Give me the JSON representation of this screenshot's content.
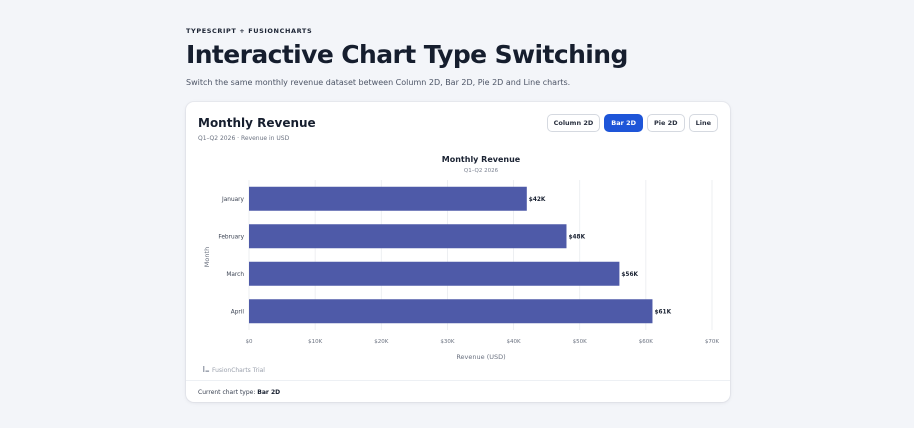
{
  "header": {
    "eyebrow": "TYPESCRIPT + FUSIONCHARTS",
    "title": "Interactive Chart Type Switching",
    "subtitle": "Switch the same monthly revenue dataset between Column 2D, Bar 2D, Pie 2D and Line charts."
  },
  "card": {
    "title": "Monthly Revenue",
    "subtitle": "Q1–Q2 2026 · Revenue in USD",
    "buttons": [
      "Column 2D",
      "Bar 2D",
      "Pie 2D",
      "Line"
    ],
    "active_index": 1,
    "footer_label": "Current chart type:",
    "footer_value": "Bar 2D"
  },
  "watermark": "FusionCharts Trial",
  "colors": {
    "bar": "#4e5aa8",
    "accent": "#1e55d8",
    "grid": "#e9ebef"
  },
  "chart_data": {
    "type": "bar",
    "orientation": "horizontal",
    "title": "Monthly Revenue",
    "subtitle": "Q1–Q2 2026",
    "categories": [
      "January",
      "February",
      "March",
      "April"
    ],
    "values": [
      42000,
      48000,
      56000,
      61000
    ],
    "value_labels": [
      "$42K",
      "$48K",
      "$56K",
      "$61K"
    ],
    "xlabel": "Revenue (USD)",
    "ylabel": "Month",
    "xlim": [
      0,
      70000
    ],
    "x_ticks": [
      0,
      10000,
      20000,
      30000,
      40000,
      50000,
      60000,
      70000
    ],
    "x_tick_labels": [
      "$0",
      "$10K",
      "$20K",
      "$30K",
      "$40K",
      "$50K",
      "$60K",
      "$70K"
    ],
    "grid": true,
    "legend": false
  }
}
